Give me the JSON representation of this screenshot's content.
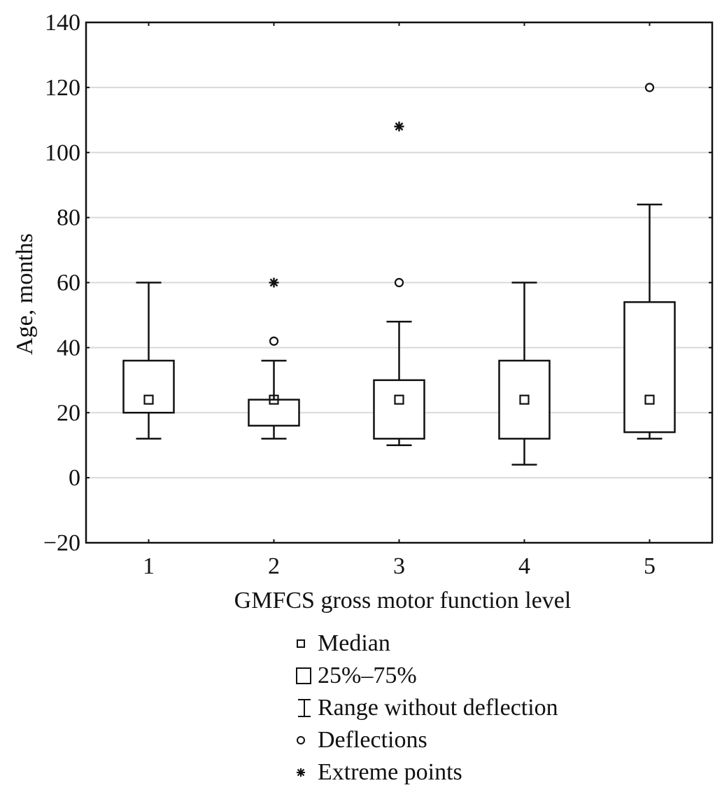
{
  "chart_data": {
    "type": "boxplot",
    "title": "",
    "xlabel": "GMFCS gross motor function level",
    "ylabel": "Age, months",
    "ylim": [
      -20,
      140
    ],
    "yticks": [
      -20,
      0,
      20,
      40,
      60,
      80,
      100,
      120,
      140
    ],
    "ytick_labels": [
      "−20",
      "0",
      "20",
      "40",
      "60",
      "80",
      "100",
      "120",
      "140"
    ],
    "grid": "horizontal",
    "categories": [
      "1",
      "2",
      "3",
      "4",
      "5"
    ],
    "series": [
      {
        "category": "1",
        "median": 24,
        "q1": 20,
        "q3": 36,
        "whisker_low": 12,
        "whisker_high": 60,
        "deflections": [],
        "extremes": []
      },
      {
        "category": "2",
        "median": 24,
        "q1": 16,
        "q3": 24,
        "whisker_low": 12,
        "whisker_high": 36,
        "deflections": [
          42
        ],
        "extremes": [
          60
        ]
      },
      {
        "category": "3",
        "median": 24,
        "q1": 12,
        "q3": 30,
        "whisker_low": 10,
        "whisker_high": 48,
        "deflections": [
          60
        ],
        "extremes": [
          108
        ]
      },
      {
        "category": "4",
        "median": 24,
        "q1": 12,
        "q3": 36,
        "whisker_low": 4,
        "whisker_high": 60,
        "deflections": [],
        "extremes": []
      },
      {
        "category": "5",
        "median": 24,
        "q1": 14,
        "q3": 54,
        "whisker_low": 12,
        "whisker_high": 84,
        "deflections": [
          120
        ],
        "extremes": []
      }
    ],
    "legend": {
      "placement": "bottom",
      "items": [
        {
          "symbol": "median-square",
          "label": "Median"
        },
        {
          "symbol": "box",
          "label": "25%–75%"
        },
        {
          "symbol": "whisker",
          "label": "Range without deflection"
        },
        {
          "symbol": "circle",
          "label": "Deflections"
        },
        {
          "symbol": "asterisk",
          "label": "Extreme points"
        }
      ]
    },
    "colors": {
      "line": "#111111",
      "grid": "#d9d9d9",
      "background": "#ffffff"
    }
  }
}
